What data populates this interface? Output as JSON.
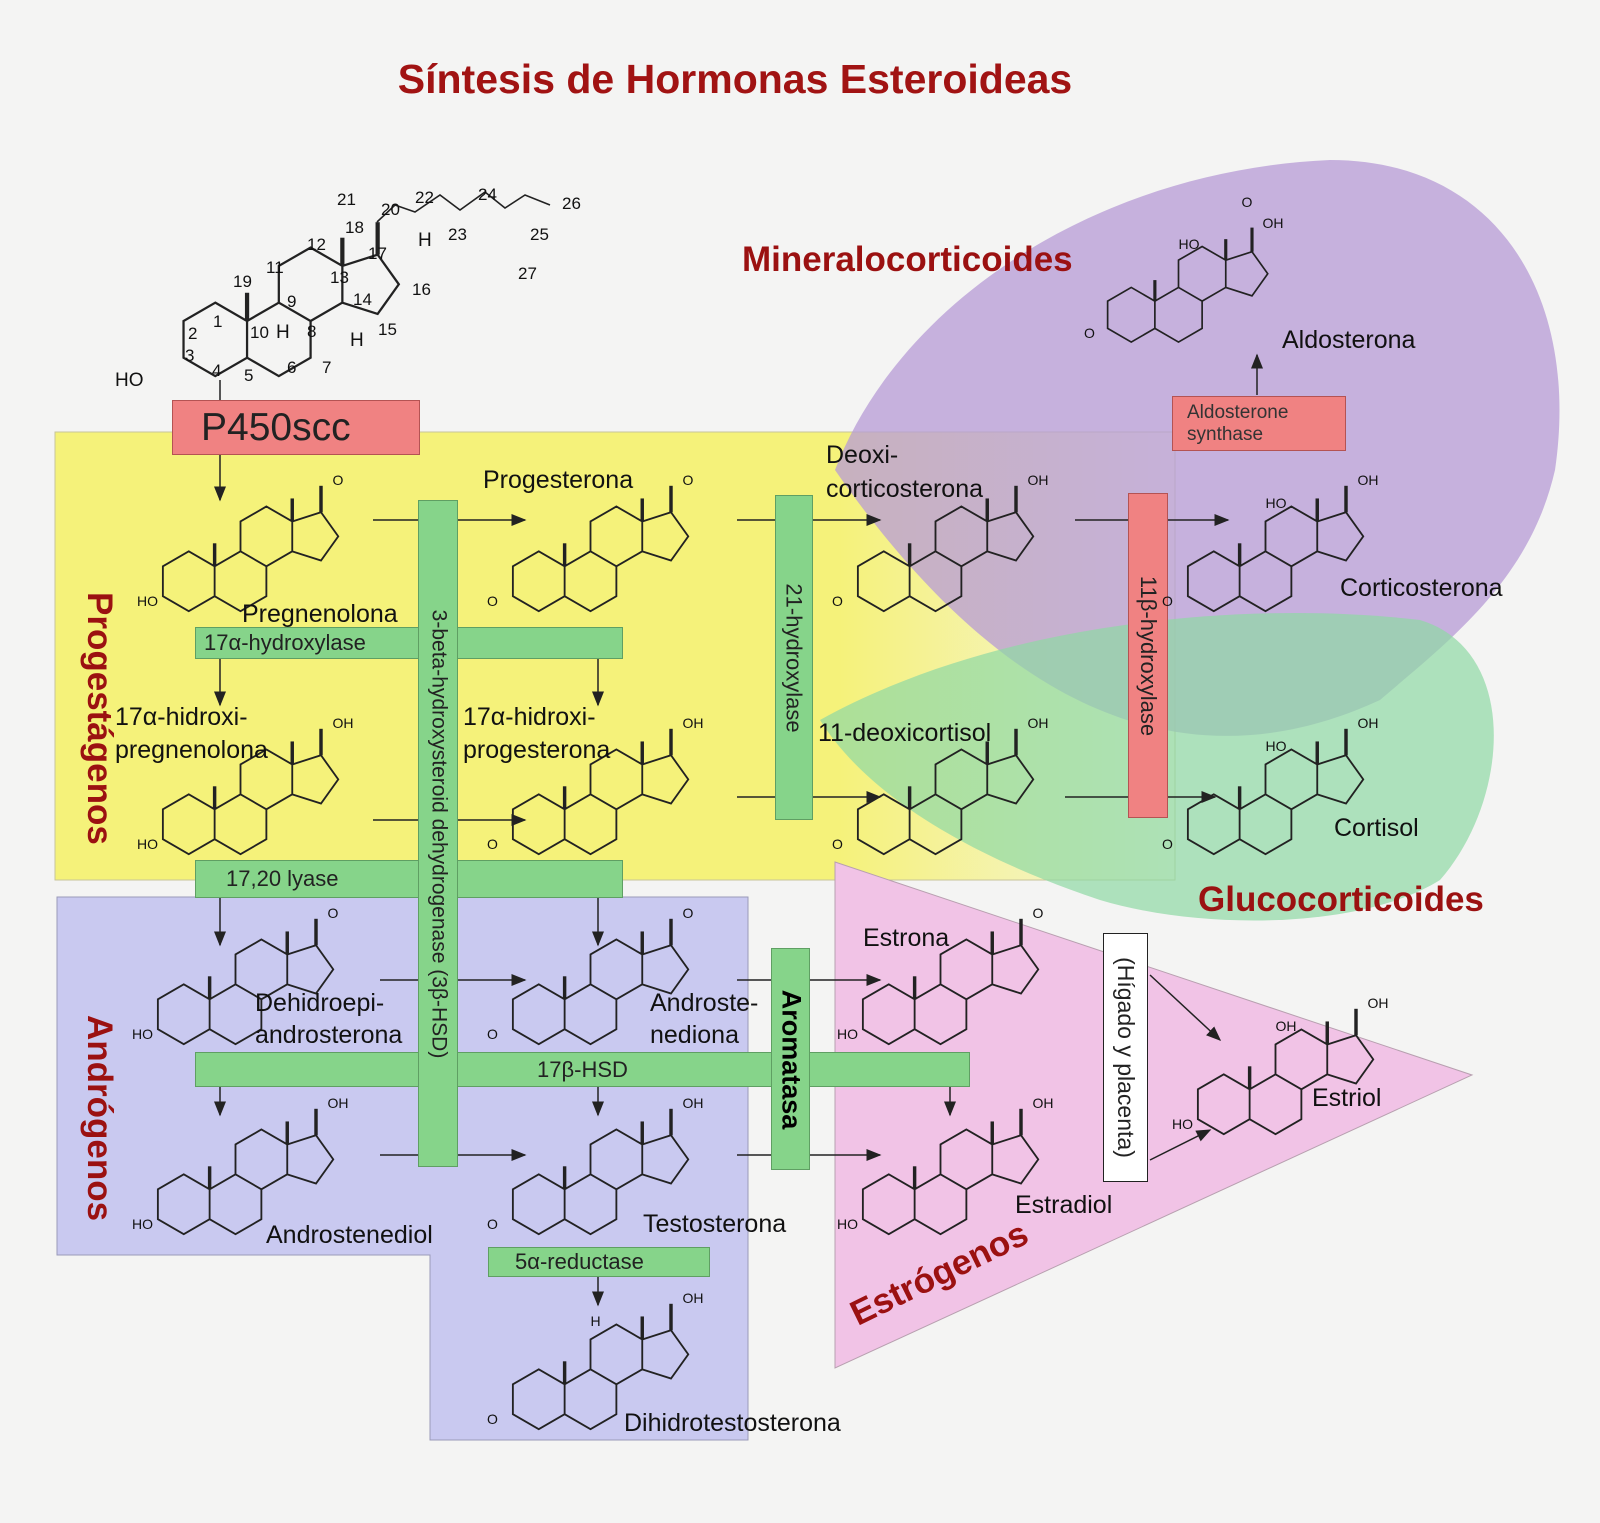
{
  "title": "Síntesis de Hormonas Esteroideas",
  "categories": {
    "progestagenos": "Progestágenos",
    "androgenos": "Andrógenos",
    "mineralocorticoides": "Mineralocorticoides",
    "glucocorticoides": "Glucocorticoides",
    "estrogenos": "Estrógenos"
  },
  "colors": {
    "title": "#a11313",
    "progestagenos_region": "#f5f27a",
    "androgenos_region": "#c9c9f0",
    "mineralocorticoides_region": "#b79bd6",
    "glucocorticoides_region": "#8fd8a4",
    "estrogenos_region": "#f1c3e6",
    "enzyme_green": "#86d48a",
    "enzyme_red": "#f08282"
  },
  "enzymes": {
    "p450scc": "P450scc",
    "hydroxylase17a": "17α-hydroxylase",
    "hsd3b": "3-beta-hydroxysteroid dehydrogenase (3β-HSD)",
    "hydroxylase21": "21-hydroxylase",
    "hydroxylase11b": "11β-hydroxylase",
    "aldosterone_synthase_1": "Aldosterone",
    "aldosterone_synthase_2": "synthase",
    "lyase1720": "17,20 lyase",
    "hsd17b": "17β-HSD",
    "aromatasa": "Aromatasa",
    "reductase5a": "5α-reductase",
    "higado": "(Hígado y placenta)"
  },
  "molecules": {
    "pregnenolona": {
      "name": "Pregnenolona",
      "left": "HO",
      "right": "O"
    },
    "progesterona": {
      "name": "Progesterona",
      "left": "O",
      "right": "O"
    },
    "deoxicorticosterona": {
      "name1": "Deoxi-",
      "name2": "corticosterona",
      "left": "O",
      "right": "OH"
    },
    "corticosterona": {
      "name": "Corticosterona",
      "left": "O",
      "right": "OH",
      "extra": "HO"
    },
    "aldosterona": {
      "name": "Aldosterona",
      "left": "O",
      "right": "OH",
      "extra": "HO",
      "top": "O"
    },
    "hidroxipregnenolona": {
      "name1": "17α-hidroxi-",
      "name2": "pregnenolona",
      "left": "HO",
      "right": "OH"
    },
    "hidroxiprogesterona": {
      "name1": "17α-hidroxi-",
      "name2": "progesterona",
      "left": "O",
      "right": "OH"
    },
    "deoxicortisol": {
      "name": "11-deoxicortisol",
      "left": "O",
      "right": "OH"
    },
    "cortisol": {
      "name": "Cortisol",
      "left": "O",
      "right": "OH",
      "extra": "HO"
    },
    "dhea": {
      "name1": "Dehidroepi-",
      "name2": "androsterona",
      "left": "HO",
      "right": "O"
    },
    "androstenediona": {
      "name1": "Androste-",
      "name2": "nediona",
      "left": "O",
      "right": "O"
    },
    "estrona": {
      "name": "Estrona",
      "left": "HO",
      "right": "O"
    },
    "androstenediol": {
      "name": "Androstenediol",
      "left": "HO",
      "right": "OH"
    },
    "testosterona": {
      "name": "Testosterona",
      "left": "O",
      "right": "OH"
    },
    "estradiol": {
      "name": "Estradiol",
      "left": "HO",
      "right": "OH"
    },
    "dihidrotestosterona": {
      "name": "Dihidrotestosterona",
      "left": "O",
      "right": "OH",
      "extra": "H"
    },
    "estriol": {
      "name": "Estriol",
      "left": "HO",
      "right": "OH",
      "extra": "OH"
    }
  },
  "cholesterol": {
    "ho": "HO",
    "h_labels": [
      "H",
      "H",
      "H"
    ],
    "numbers": [
      "1",
      "2",
      "3",
      "4",
      "5",
      "6",
      "7",
      "8",
      "9",
      "10",
      "11",
      "12",
      "13",
      "14",
      "15",
      "16",
      "17",
      "18",
      "19",
      "20",
      "21",
      "22",
      "23",
      "24",
      "25",
      "26",
      "27"
    ]
  }
}
